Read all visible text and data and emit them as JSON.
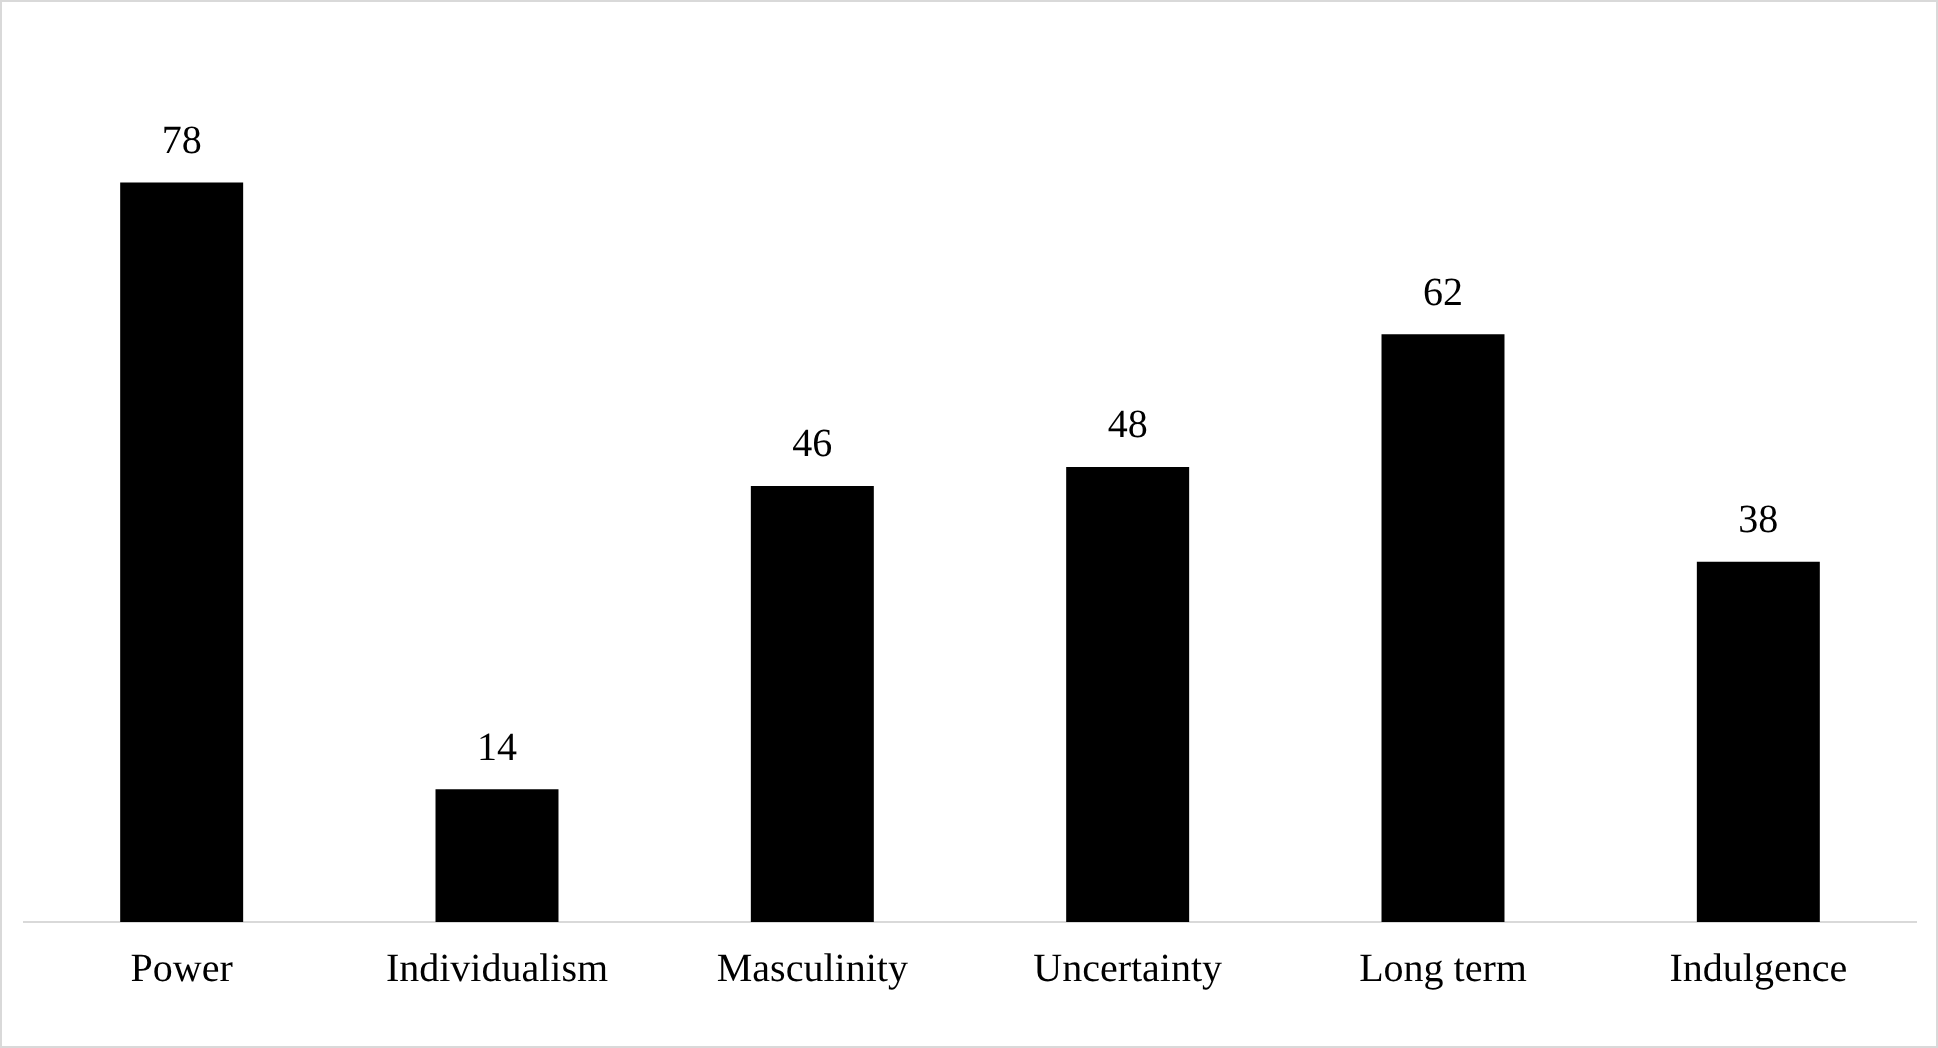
{
  "chart_data": {
    "type": "bar",
    "categories": [
      "Power",
      "Individualism",
      "Masculinity",
      "Uncertainty",
      "Long term",
      "Indulgence"
    ],
    "values": [
      78,
      14,
      46,
      48,
      62,
      38
    ],
    "color": "#000000",
    "data_labels": true,
    "grid": false,
    "legend": false
  }
}
